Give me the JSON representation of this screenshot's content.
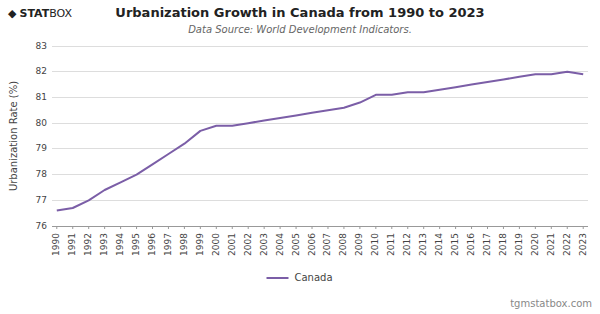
{
  "chart_data": {
    "type": "line",
    "title": "Urbanization Growth in Canada from 1990 to 2023",
    "subtitle": "Data Source: World Development Indicators.",
    "y_label": "Urbanization Rate (%)",
    "annotations": [
      "◆",
      "STAT",
      "BOX",
      "tgmstatbox.com"
    ],
    "x": [
      1990,
      1991,
      1992,
      1993,
      1994,
      1995,
      1996,
      1997,
      1998,
      1999,
      2000,
      2001,
      2002,
      2003,
      2004,
      2005,
      2006,
      2007,
      2008,
      2009,
      2010,
      2011,
      2012,
      2013,
      2014,
      2015,
      2016,
      2017,
      2018,
      2019,
      2020,
      2021,
      2022,
      2023
    ],
    "series": [
      {
        "name": "Canada",
        "color": "#7b5ea7",
        "values": [
          76.6,
          76.7,
          77.0,
          77.4,
          77.7,
          78.0,
          78.4,
          78.8,
          79.2,
          79.7,
          79.9,
          79.9,
          80.0,
          80.1,
          80.2,
          80.3,
          80.4,
          80.5,
          80.6,
          80.8,
          81.1,
          81.1,
          81.2,
          81.2,
          81.3,
          81.4,
          81.5,
          81.6,
          81.7,
          81.8,
          81.9,
          81.9,
          82.0,
          81.9
        ]
      }
    ],
    "xlim": [
      1989.7,
      2023.3
    ],
    "xticks": [
      1990,
      1991,
      1992,
      1993,
      1994,
      1995,
      1996,
      1997,
      1998,
      1999,
      2000,
      2001,
      2002,
      2003,
      2004,
      2005,
      2006,
      2007,
      2008,
      2009,
      2010,
      2011,
      2012,
      2013,
      2014,
      2015,
      2016,
      2017,
      2018,
      2019,
      2020,
      2021,
      2022,
      2023
    ],
    "ylim": [
      76,
      83
    ],
    "yticks": [
      76,
      77,
      78,
      79,
      80,
      81,
      82,
      83
    ],
    "grid": true,
    "legend": "bottom"
  }
}
